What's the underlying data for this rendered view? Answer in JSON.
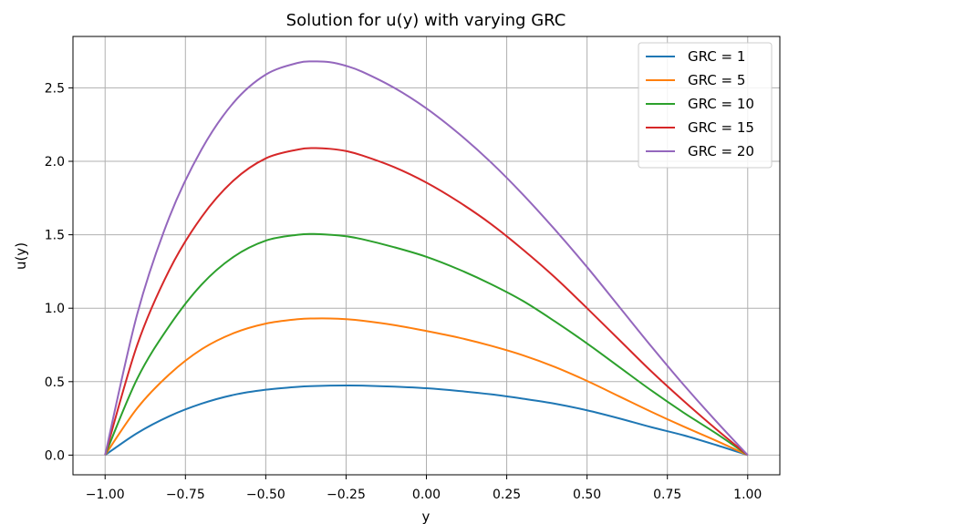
{
  "chart_data": {
    "type": "line",
    "title": "Solution for u(y) with varying GRC",
    "xlabel": "y",
    "ylabel": "u(y)",
    "xlim": [
      -1.1,
      1.1
    ],
    "ylim": [
      -0.134,
      2.85
    ],
    "xticks": [
      -1.0,
      -0.75,
      -0.5,
      -0.25,
      0.0,
      0.25,
      0.5,
      0.75,
      1.0
    ],
    "xtick_labels": [
      "−1.00",
      "−0.75",
      "−0.50",
      "−0.25",
      "0.00",
      "0.25",
      "0.50",
      "0.75",
      "1.00"
    ],
    "yticks": [
      0.0,
      0.5,
      1.0,
      1.5,
      2.0,
      2.5
    ],
    "ytick_labels": [
      "0.0",
      "0.5",
      "1.0",
      "1.5",
      "2.0",
      "2.5"
    ],
    "grid": true,
    "legend_position": "upper-right",
    "x": [
      -1.0,
      -0.9,
      -0.8,
      -0.7,
      -0.6,
      -0.5,
      -0.4,
      -0.35,
      -0.3,
      -0.25,
      -0.2,
      -0.1,
      0.0,
      0.1,
      0.2,
      0.3,
      0.4,
      0.5,
      0.6,
      0.7,
      0.8,
      0.9,
      1.0
    ],
    "series": [
      {
        "name": "GRC = 1",
        "color": "#1f77b4",
        "values": [
          0.0,
          0.15,
          0.265,
          0.35,
          0.41,
          0.445,
          0.465,
          0.47,
          0.473,
          0.474,
          0.473,
          0.466,
          0.455,
          0.437,
          0.414,
          0.384,
          0.35,
          0.305,
          0.25,
          0.19,
          0.135,
          0.07,
          0.0
        ]
      },
      {
        "name": "GRC = 5",
        "color": "#ff7f0e",
        "values": [
          0.0,
          0.32,
          0.55,
          0.72,
          0.83,
          0.895,
          0.925,
          0.93,
          0.93,
          0.925,
          0.915,
          0.885,
          0.845,
          0.8,
          0.745,
          0.68,
          0.6,
          0.505,
          0.4,
          0.295,
          0.195,
          0.1,
          0.0
        ]
      },
      {
        "name": "GRC = 10",
        "color": "#2ca02c",
        "values": [
          0.0,
          0.52,
          0.88,
          1.16,
          1.35,
          1.46,
          1.5,
          1.505,
          1.5,
          1.49,
          1.47,
          1.415,
          1.35,
          1.265,
          1.165,
          1.05,
          0.91,
          0.76,
          0.6,
          0.44,
          0.29,
          0.15,
          0.0
        ]
      },
      {
        "name": "GRC = 15",
        "color": "#d62728",
        "values": [
          0.0,
          0.75,
          1.26,
          1.62,
          1.87,
          2.02,
          2.08,
          2.09,
          2.085,
          2.07,
          2.04,
          1.96,
          1.855,
          1.725,
          1.575,
          1.4,
          1.21,
          1.0,
          0.785,
          0.57,
          0.37,
          0.18,
          0.0
        ]
      },
      {
        "name": "GRC = 20",
        "color": "#9467bd",
        "values": [
          0.0,
          0.96,
          1.62,
          2.08,
          2.4,
          2.59,
          2.67,
          2.68,
          2.675,
          2.65,
          2.61,
          2.5,
          2.36,
          2.19,
          1.995,
          1.775,
          1.535,
          1.28,
          1.01,
          0.74,
          0.48,
          0.235,
          0.0
        ]
      }
    ]
  }
}
